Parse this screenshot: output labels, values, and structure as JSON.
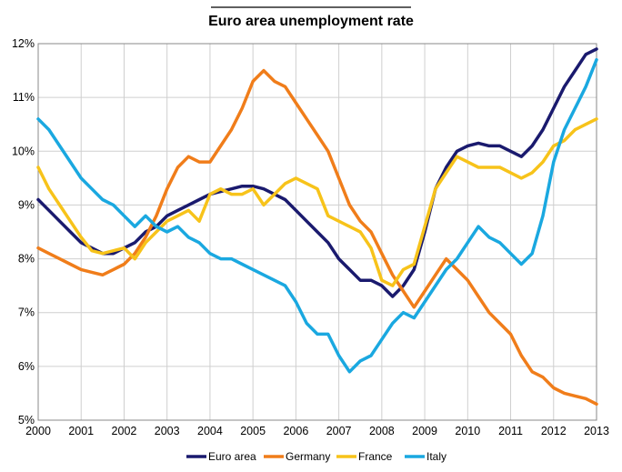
{
  "chart_data": {
    "type": "line",
    "title": "Euro area unemployment rate",
    "xlabel": "",
    "ylabel": "",
    "xlim": [
      2000,
      2013
    ],
    "ylim": [
      5,
      12
    ],
    "x_ticks": [
      "2000",
      "2001",
      "2002",
      "2003",
      "2004",
      "2005",
      "2006",
      "2007",
      "2008",
      "2009",
      "2010",
      "2011",
      "2012",
      "2013"
    ],
    "y_ticks": [
      "5%",
      "6%",
      "7%",
      "8%",
      "9%",
      "10%",
      "11%",
      "12%"
    ],
    "y_tick_values": [
      5,
      6,
      7,
      8,
      9,
      10,
      11,
      12
    ],
    "grid": true,
    "legend_position": "bottom",
    "series": [
      {
        "name": "Euro area",
        "color": "#1a1a6e",
        "points": [
          [
            2000.0,
            9.1
          ],
          [
            2000.25,
            8.9
          ],
          [
            2000.5,
            8.7
          ],
          [
            2000.75,
            8.5
          ],
          [
            2001.0,
            8.3
          ],
          [
            2001.25,
            8.2
          ],
          [
            2001.5,
            8.1
          ],
          [
            2001.75,
            8.1
          ],
          [
            2002.0,
            8.2
          ],
          [
            2002.25,
            8.3
          ],
          [
            2002.5,
            8.5
          ],
          [
            2002.75,
            8.6
          ],
          [
            2003.0,
            8.8
          ],
          [
            2003.25,
            8.9
          ],
          [
            2003.5,
            9.0
          ],
          [
            2003.75,
            9.1
          ],
          [
            2004.0,
            9.2
          ],
          [
            2004.25,
            9.25
          ],
          [
            2004.5,
            9.3
          ],
          [
            2004.75,
            9.35
          ],
          [
            2005.0,
            9.35
          ],
          [
            2005.25,
            9.3
          ],
          [
            2005.5,
            9.2
          ],
          [
            2005.75,
            9.1
          ],
          [
            2006.0,
            8.9
          ],
          [
            2006.25,
            8.7
          ],
          [
            2006.5,
            8.5
          ],
          [
            2006.75,
            8.3
          ],
          [
            2007.0,
            8.0
          ],
          [
            2007.25,
            7.8
          ],
          [
            2007.5,
            7.6
          ],
          [
            2007.75,
            7.6
          ],
          [
            2008.0,
            7.5
          ],
          [
            2008.25,
            7.3
          ],
          [
            2008.5,
            7.5
          ],
          [
            2008.75,
            7.8
          ],
          [
            2009.0,
            8.5
          ],
          [
            2009.25,
            9.3
          ],
          [
            2009.5,
            9.7
          ],
          [
            2009.75,
            10.0
          ],
          [
            2010.0,
            10.1
          ],
          [
            2010.25,
            10.15
          ],
          [
            2010.5,
            10.1
          ],
          [
            2010.75,
            10.1
          ],
          [
            2011.0,
            10.0
          ],
          [
            2011.25,
            9.9
          ],
          [
            2011.5,
            10.1
          ],
          [
            2011.75,
            10.4
          ],
          [
            2012.0,
            10.8
          ],
          [
            2012.25,
            11.2
          ],
          [
            2012.5,
            11.5
          ],
          [
            2012.75,
            11.8
          ],
          [
            2013.0,
            11.9
          ]
        ]
      },
      {
        "name": "Germany",
        "color": "#f07d1a",
        "points": [
          [
            2000.0,
            8.2
          ],
          [
            2000.25,
            8.1
          ],
          [
            2000.5,
            8.0
          ],
          [
            2000.75,
            7.9
          ],
          [
            2001.0,
            7.8
          ],
          [
            2001.25,
            7.75
          ],
          [
            2001.5,
            7.7
          ],
          [
            2001.75,
            7.8
          ],
          [
            2002.0,
            7.9
          ],
          [
            2002.25,
            8.1
          ],
          [
            2002.5,
            8.4
          ],
          [
            2002.75,
            8.8
          ],
          [
            2003.0,
            9.3
          ],
          [
            2003.25,
            9.7
          ],
          [
            2003.5,
            9.9
          ],
          [
            2003.75,
            9.8
          ],
          [
            2004.0,
            9.8
          ],
          [
            2004.25,
            10.1
          ],
          [
            2004.5,
            10.4
          ],
          [
            2004.75,
            10.8
          ],
          [
            2005.0,
            11.3
          ],
          [
            2005.25,
            11.5
          ],
          [
            2005.5,
            11.3
          ],
          [
            2005.75,
            11.2
          ],
          [
            2006.0,
            10.9
          ],
          [
            2006.25,
            10.6
          ],
          [
            2006.5,
            10.3
          ],
          [
            2006.75,
            10.0
          ],
          [
            2007.0,
            9.5
          ],
          [
            2007.25,
            9.0
          ],
          [
            2007.5,
            8.7
          ],
          [
            2007.75,
            8.5
          ],
          [
            2008.0,
            8.1
          ],
          [
            2008.25,
            7.7
          ],
          [
            2008.5,
            7.4
          ],
          [
            2008.75,
            7.1
          ],
          [
            2009.0,
            7.4
          ],
          [
            2009.25,
            7.7
          ],
          [
            2009.5,
            8.0
          ],
          [
            2009.75,
            7.8
          ],
          [
            2010.0,
            7.6
          ],
          [
            2010.25,
            7.3
          ],
          [
            2010.5,
            7.0
          ],
          [
            2010.75,
            6.8
          ],
          [
            2011.0,
            6.6
          ],
          [
            2011.25,
            6.2
          ],
          [
            2011.5,
            5.9
          ],
          [
            2011.75,
            5.8
          ],
          [
            2012.0,
            5.6
          ],
          [
            2012.25,
            5.5
          ],
          [
            2012.5,
            5.45
          ],
          [
            2012.75,
            5.4
          ],
          [
            2013.0,
            5.3
          ]
        ]
      },
      {
        "name": "France",
        "color": "#f7c31a",
        "points": [
          [
            2000.0,
            9.7
          ],
          [
            2000.25,
            9.3
          ],
          [
            2000.5,
            9.0
          ],
          [
            2000.75,
            8.7
          ],
          [
            2001.0,
            8.4
          ],
          [
            2001.25,
            8.15
          ],
          [
            2001.5,
            8.1
          ],
          [
            2001.75,
            8.15
          ],
          [
            2002.0,
            8.2
          ],
          [
            2002.25,
            8.0
          ],
          [
            2002.5,
            8.3
          ],
          [
            2002.75,
            8.5
          ],
          [
            2003.0,
            8.7
          ],
          [
            2003.25,
            8.8
          ],
          [
            2003.5,
            8.9
          ],
          [
            2003.75,
            8.7
          ],
          [
            2004.0,
            9.2
          ],
          [
            2004.25,
            9.3
          ],
          [
            2004.5,
            9.2
          ],
          [
            2004.75,
            9.2
          ],
          [
            2005.0,
            9.3
          ],
          [
            2005.25,
            9.0
          ],
          [
            2005.5,
            9.2
          ],
          [
            2005.75,
            9.4
          ],
          [
            2006.0,
            9.5
          ],
          [
            2006.25,
            9.4
          ],
          [
            2006.5,
            9.3
          ],
          [
            2006.75,
            8.8
          ],
          [
            2007.0,
            8.7
          ],
          [
            2007.25,
            8.6
          ],
          [
            2007.5,
            8.5
          ],
          [
            2007.75,
            8.2
          ],
          [
            2008.0,
            7.6
          ],
          [
            2008.25,
            7.5
          ],
          [
            2008.5,
            7.8
          ],
          [
            2008.75,
            7.9
          ],
          [
            2009.0,
            8.6
          ],
          [
            2009.25,
            9.3
          ],
          [
            2009.5,
            9.6
          ],
          [
            2009.75,
            9.9
          ],
          [
            2010.0,
            9.8
          ],
          [
            2010.25,
            9.7
          ],
          [
            2010.5,
            9.7
          ],
          [
            2010.75,
            9.7
          ],
          [
            2011.0,
            9.6
          ],
          [
            2011.25,
            9.5
          ],
          [
            2011.5,
            9.6
          ],
          [
            2011.75,
            9.8
          ],
          [
            2012.0,
            10.1
          ],
          [
            2012.25,
            10.2
          ],
          [
            2012.5,
            10.4
          ],
          [
            2012.75,
            10.5
          ],
          [
            2013.0,
            10.6
          ]
        ]
      },
      {
        "name": "Italy",
        "color": "#1aa8e0",
        "points": [
          [
            2000.0,
            10.6
          ],
          [
            2000.25,
            10.4
          ],
          [
            2000.5,
            10.1
          ],
          [
            2000.75,
            9.8
          ],
          [
            2001.0,
            9.5
          ],
          [
            2001.25,
            9.3
          ],
          [
            2001.5,
            9.1
          ],
          [
            2001.75,
            9.0
          ],
          [
            2002.0,
            8.8
          ],
          [
            2002.25,
            8.6
          ],
          [
            2002.5,
            8.8
          ],
          [
            2002.75,
            8.6
          ],
          [
            2003.0,
            8.5
          ],
          [
            2003.25,
            8.6
          ],
          [
            2003.5,
            8.4
          ],
          [
            2003.75,
            8.3
          ],
          [
            2004.0,
            8.1
          ],
          [
            2004.25,
            8.0
          ],
          [
            2004.5,
            8.0
          ],
          [
            2004.75,
            7.9
          ],
          [
            2005.0,
            7.8
          ],
          [
            2005.25,
            7.7
          ],
          [
            2005.5,
            7.6
          ],
          [
            2005.75,
            7.5
          ],
          [
            2006.0,
            7.2
          ],
          [
            2006.25,
            6.8
          ],
          [
            2006.5,
            6.6
          ],
          [
            2006.75,
            6.6
          ],
          [
            2007.0,
            6.2
          ],
          [
            2007.25,
            5.9
          ],
          [
            2007.5,
            6.1
          ],
          [
            2007.75,
            6.2
          ],
          [
            2008.0,
            6.5
          ],
          [
            2008.25,
            6.8
          ],
          [
            2008.5,
            7.0
          ],
          [
            2008.75,
            6.9
          ],
          [
            2009.0,
            7.2
          ],
          [
            2009.25,
            7.5
          ],
          [
            2009.5,
            7.8
          ],
          [
            2009.75,
            8.0
          ],
          [
            2010.0,
            8.3
          ],
          [
            2010.25,
            8.6
          ],
          [
            2010.5,
            8.4
          ],
          [
            2010.75,
            8.3
          ],
          [
            2011.0,
            8.1
          ],
          [
            2011.25,
            7.9
          ],
          [
            2011.5,
            8.1
          ],
          [
            2011.75,
            8.8
          ],
          [
            2012.0,
            9.8
          ],
          [
            2012.25,
            10.4
          ],
          [
            2012.5,
            10.8
          ],
          [
            2012.75,
            11.2
          ],
          [
            2013.0,
            11.7
          ]
        ]
      }
    ]
  }
}
